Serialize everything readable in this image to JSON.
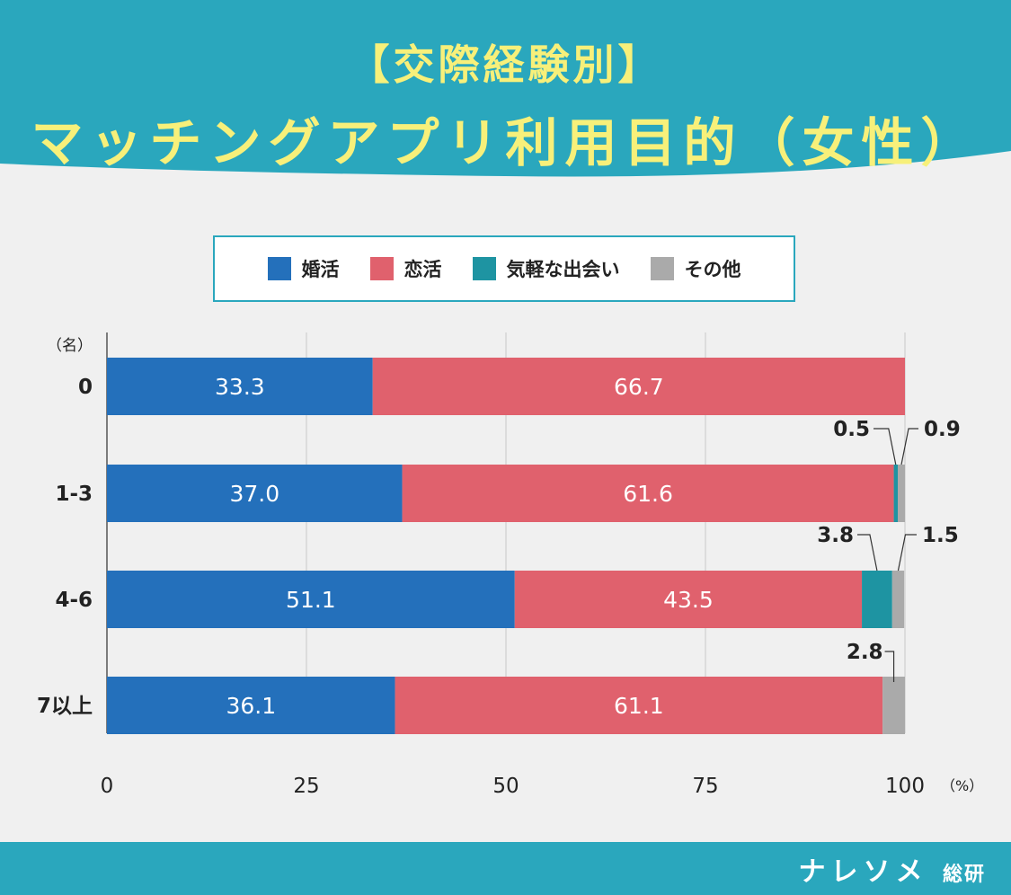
{
  "header": {
    "title_line1": "【交際経験別】",
    "title_line2": "マッチングアプリ利用目的（女性）"
  },
  "legend": [
    {
      "label": "婚活",
      "color": "#2470bb"
    },
    {
      "label": "恋活",
      "color": "#e0616d"
    },
    {
      "label": "気軽な出会い",
      "color": "#1e94a2"
    },
    {
      "label": "その他",
      "color": "#aaaaaa"
    }
  ],
  "chart_data": {
    "type": "bar",
    "orientation": "horizontal",
    "stacked": true,
    "categories": [
      "0",
      "1-3",
      "4-6",
      "7以上"
    ],
    "series": [
      {
        "name": "婚活",
        "values": [
          33.3,
          37.0,
          51.1,
          36.1
        ],
        "color": "#2470bb"
      },
      {
        "name": "恋活",
        "values": [
          66.7,
          61.6,
          43.5,
          61.1
        ],
        "color": "#e0616d"
      },
      {
        "name": "気軽な出会い",
        "values": [
          0,
          0.5,
          3.8,
          0
        ],
        "color": "#1e94a2"
      },
      {
        "name": "その他",
        "values": [
          0,
          0.9,
          1.5,
          2.8
        ],
        "color": "#aaaaaa"
      }
    ],
    "value_labels": [
      [
        "33.3",
        "66.7",
        "",
        ""
      ],
      [
        "37.0",
        "61.6",
        "0.5",
        "0.9"
      ],
      [
        "51.1",
        "43.5",
        "3.8",
        "1.5"
      ],
      [
        "36.1",
        "61.1",
        "",
        "2.8"
      ]
    ],
    "xlim": [
      0,
      100
    ],
    "xticks": [
      "0",
      "25",
      "50",
      "75",
      "100"
    ],
    "x_unit": "（%）",
    "y_unit": "（名）",
    "grid": true
  },
  "footer": {
    "brand": "ナレソメ",
    "brand_sub": "総研"
  }
}
